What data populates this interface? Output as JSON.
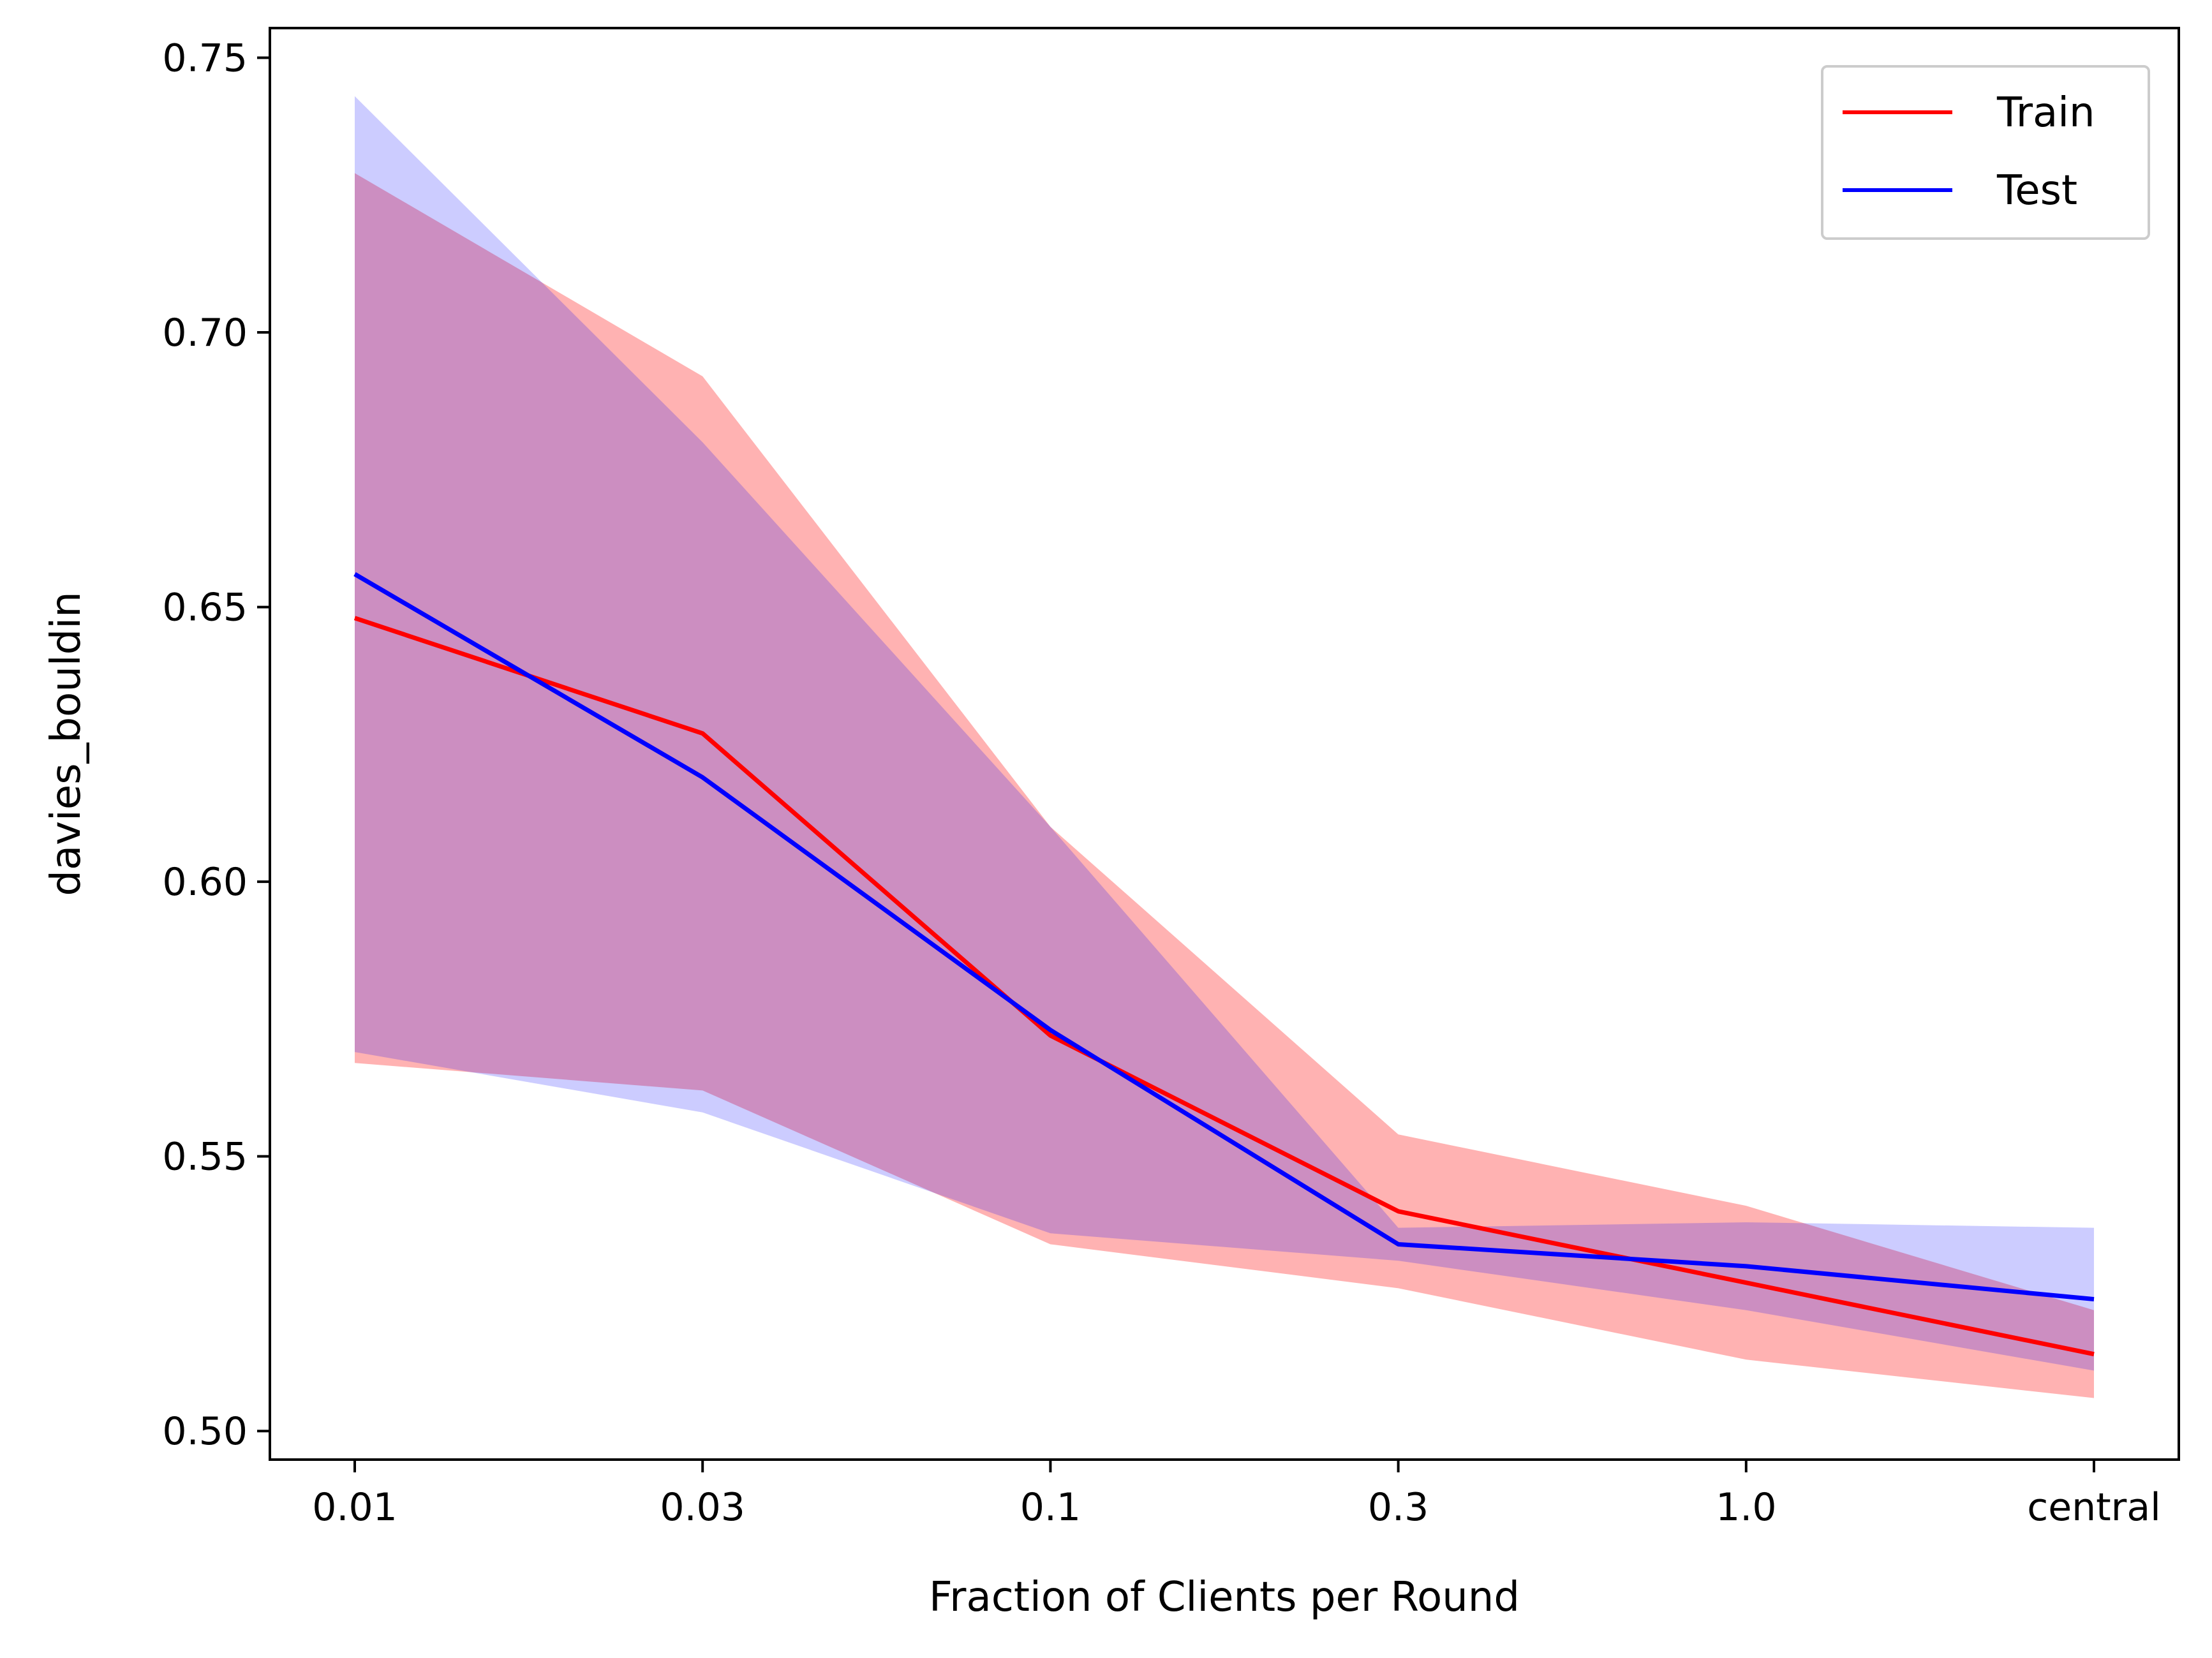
{
  "chart_data": {
    "type": "line",
    "title": "",
    "xlabel": "Fraction of Clients per Round",
    "ylabel": "davies_bouldin",
    "categories": [
      "0.01",
      "0.03",
      "0.1",
      "0.3",
      "1.0",
      "central"
    ],
    "ylim": [
      0.4948,
      0.7554
    ],
    "yticks": [
      "0.50",
      "0.55",
      "0.60",
      "0.65",
      "0.70",
      "0.75"
    ],
    "grid": false,
    "legend_position": "top-right",
    "series": [
      {
        "name": "Train",
        "color": "#ff0000",
        "band_color": "#ff0000",
        "band_opacity": 0.3,
        "values": [
          0.648,
          0.627,
          0.572,
          0.54,
          0.527,
          0.514
        ],
        "lower": [
          0.567,
          0.562,
          0.534,
          0.526,
          0.513,
          0.506
        ],
        "upper": [
          0.729,
          0.692,
          0.61,
          0.554,
          0.541,
          0.522
        ]
      },
      {
        "name": "Test",
        "color": "#0000ff",
        "band_color": "#0000ff",
        "band_opacity": 0.2,
        "values": [
          0.656,
          0.619,
          0.573,
          0.534,
          0.53,
          0.524
        ],
        "lower": [
          0.569,
          0.558,
          0.536,
          0.531,
          0.522,
          0.511
        ],
        "upper": [
          0.743,
          0.68,
          0.61,
          0.537,
          0.538,
          0.537
        ]
      }
    ]
  }
}
